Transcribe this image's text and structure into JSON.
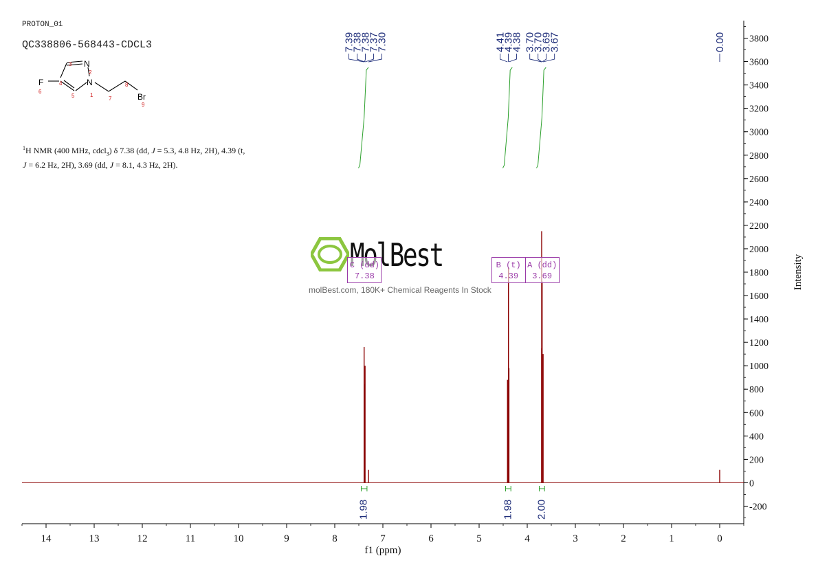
{
  "header": {
    "experiment": "PROTON_01",
    "sample": "QC338806-568443-CDCL3"
  },
  "description": {
    "prefix_sup": "1",
    "text_a": "H NMR (400 MHz, cdcl",
    "sub3": "3",
    "text_b": ") δ 7.38 (dd, ",
    "j": "J",
    "text_c": " = 5.3, 4.8 Hz, 2H), 4.39 (t,",
    "j2": "J",
    "text_d": " = 6.2 Hz, 2H), 3.69 (dd, ",
    "j3": "J",
    "text_e": " = 8.1, 4.3 Hz, 2H)."
  },
  "molecule": {
    "atoms": [
      "F",
      "N",
      "Br"
    ],
    "locants": [
      "1",
      "2",
      "3",
      "4",
      "5",
      "6",
      "7",
      "8",
      "9"
    ]
  },
  "watermark": {
    "brand": "MolBest",
    "tagline": "molBest.com, 180K+ Chemical Reagents In Stock"
  },
  "colors": {
    "spectrum": "#8b0000",
    "integral": "#2ca02c",
    "label_text": "#1f2e7a",
    "multiplet_box": "#9a3aa8",
    "watermark_green": "#8cc63f"
  },
  "chart_data": {
    "type": "line",
    "xlabel": "f1 (ppm)",
    "ylabel": "Intensity",
    "x_reversed": true,
    "xlim": [
      14.5,
      -0.5
    ],
    "ylim": [
      -350,
      3950
    ],
    "x_ticks": [
      14,
      13,
      12,
      11,
      10,
      9,
      8,
      7,
      6,
      5,
      4,
      3,
      2,
      1,
      0
    ],
    "y_ticks": [
      -200,
      0,
      200,
      400,
      600,
      800,
      1000,
      1200,
      1400,
      1600,
      1800,
      2000,
      2200,
      2400,
      2600,
      2800,
      3000,
      3200,
      3400,
      3600,
      3800
    ],
    "peaks": [
      {
        "ppm": 7.39,
        "intensity": 1160
      },
      {
        "ppm": 7.38,
        "intensity": 840
      },
      {
        "ppm": 7.37,
        "intensity": 1000
      },
      {
        "ppm": 7.3,
        "intensity": 110
      },
      {
        "ppm": 4.41,
        "intensity": 880
      },
      {
        "ppm": 4.39,
        "intensity": 1840
      },
      {
        "ppm": 4.38,
        "intensity": 980
      },
      {
        "ppm": 3.7,
        "intensity": 1150
      },
      {
        "ppm": 3.7,
        "intensity": 2150
      },
      {
        "ppm": 3.69,
        "intensity": 1720
      },
      {
        "ppm": 3.67,
        "intensity": 1100
      },
      {
        "ppm": 0.0,
        "intensity": 110
      }
    ],
    "peak_labels": [
      {
        "group": 1,
        "ppm": 7.39,
        "label": "7.39"
      },
      {
        "group": 1,
        "ppm": 7.38,
        "label": "7.38"
      },
      {
        "group": 1,
        "ppm": 7.38,
        "label": "7.38"
      },
      {
        "group": 1,
        "ppm": 7.37,
        "label": "7.37"
      },
      {
        "group": 1,
        "ppm": 7.3,
        "label": "7.30"
      },
      {
        "group": 2,
        "ppm": 4.41,
        "label": "4.41"
      },
      {
        "group": 2,
        "ppm": 4.39,
        "label": "4.39"
      },
      {
        "group": 2,
        "ppm": 4.38,
        "label": "4.38"
      },
      {
        "group": 3,
        "ppm": 3.7,
        "label": "3.70"
      },
      {
        "group": 3,
        "ppm": 3.7,
        "label": "3.70"
      },
      {
        "group": 3,
        "ppm": 3.69,
        "label": "3.69"
      },
      {
        "group": 3,
        "ppm": 3.67,
        "label": "3.67"
      },
      {
        "group": 4,
        "ppm": 0.0,
        "label": "0.00"
      }
    ],
    "integrals": [
      {
        "from": 7.45,
        "to": 7.33,
        "value": "1.98",
        "curve_low": 2690,
        "curve_high": 3550
      },
      {
        "from": 4.45,
        "to": 4.34,
        "value": "1.98",
        "curve_low": 2690,
        "curve_high": 3550
      },
      {
        "from": 3.75,
        "to": 3.64,
        "value": "2.00",
        "curve_low": 2690,
        "curve_high": 3550
      }
    ],
    "multiplets": [
      {
        "letter": "C",
        "mult": "dd",
        "shift": "7.38",
        "line1": "C (dd)",
        "line2": "7.38"
      },
      {
        "letter": "B",
        "mult": "t",
        "shift": "4.39",
        "line1": "B (t)",
        "line2": "4.39"
      },
      {
        "letter": "A",
        "mult": "dd",
        "shift": "3.69",
        "line1": "A (dd)",
        "line2": "3.69"
      }
    ]
  }
}
